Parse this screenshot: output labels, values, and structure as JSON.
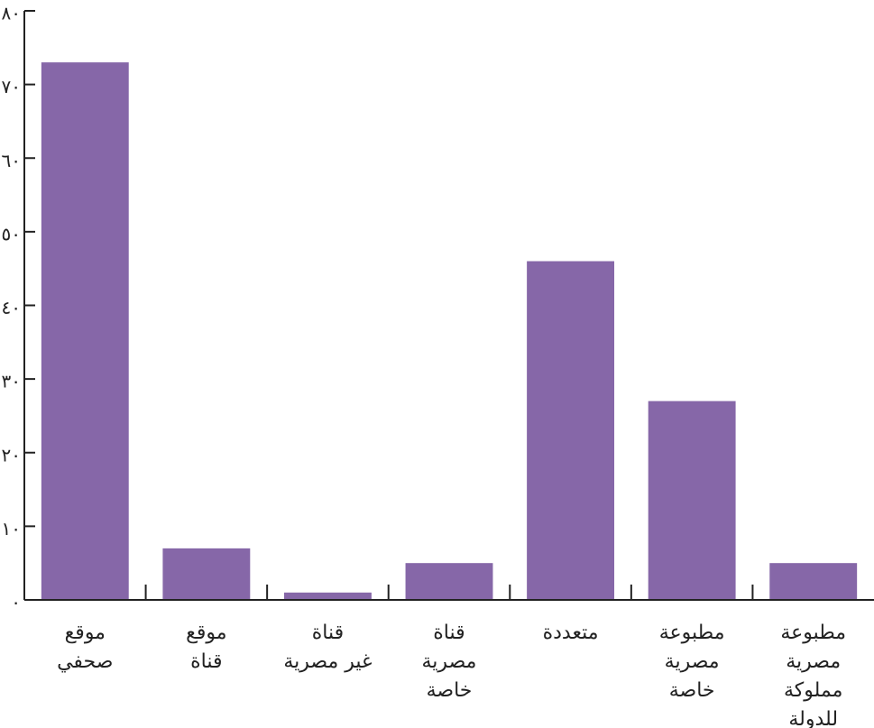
{
  "chart_data": {
    "type": "bar",
    "categories": [
      "موقع\nصحفي",
      "موقع\nقناة",
      "قناة\nغير مصرية",
      "قناة\nمصرية\nخاصة",
      "متعددة",
      "مطبوعة\nمصرية\nخاصة",
      "مطبوعة\nمصرية\nمملوكة\nللدولة"
    ],
    "values": [
      73,
      7,
      1,
      5,
      46,
      27,
      5
    ],
    "color": "#8667a8",
    "ylim": [
      0,
      80
    ],
    "yticks": [
      {
        "value": 0,
        "label": "٠"
      },
      {
        "value": 10,
        "label": "١٠"
      },
      {
        "value": 20,
        "label": "٢٠"
      },
      {
        "value": 30,
        "label": "٣٠"
      },
      {
        "value": 40,
        "label": "٤٠"
      },
      {
        "value": 50,
        "label": "٥٠"
      },
      {
        "value": 60,
        "label": "٦٠"
      },
      {
        "value": 70,
        "label": "٧٠"
      },
      {
        "value": 80,
        "label": "٨٠"
      }
    ],
    "grid": false
  }
}
